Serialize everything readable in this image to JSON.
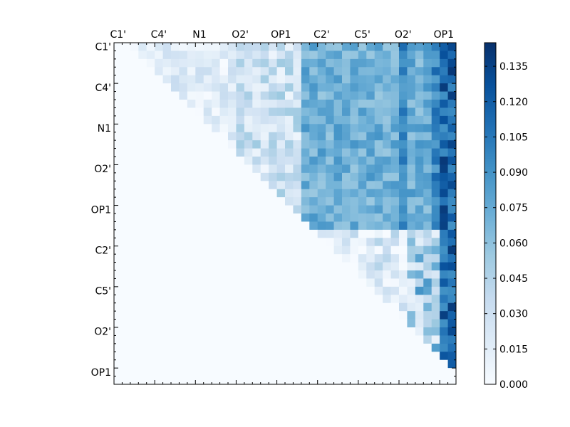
{
  "chart_data": {
    "type": "heatmap",
    "title": "",
    "xlabel": "",
    "ylabel": "",
    "x_tick_labels": [
      "C1'",
      "C4'",
      "N1",
      "O2'",
      "OP1",
      "C2'",
      "C5'",
      "O2'",
      "OP1"
    ],
    "y_tick_labels": [
      "C1'",
      "C4'",
      "N1",
      "O2'",
      "OP1",
      "C2'",
      "C5'",
      "O2'",
      "OP1"
    ],
    "grid_size": 42,
    "tick_spacing": 5,
    "colormap": "Blues",
    "triangle": "upper",
    "grid": false,
    "colorbar": {
      "range": [
        0.0,
        0.145
      ],
      "tick_labels": [
        "0.000",
        "0.015",
        "0.030",
        "0.045",
        "0.060",
        "0.075",
        "0.090",
        "0.105",
        "0.120",
        "0.135"
      ],
      "tick_values": [
        0.0,
        0.015,
        0.03,
        0.045,
        0.06,
        0.075,
        0.09,
        0.105,
        0.12,
        0.135
      ],
      "placement": "right"
    },
    "regions": [
      {
        "name": "rows 0-22 x cols 0-22",
        "typical_value": 0.02
      },
      {
        "name": "rows 0-22 x cols 23-41",
        "typical_value": 0.08
      },
      {
        "name": "rows 23-41 x cols 23-41",
        "typical_value": 0.04
      },
      {
        "name": "column 40",
        "typical_value": 0.12
      }
    ],
    "colors": {
      "low": "#f7fbff",
      "high": "#08306b"
    }
  }
}
